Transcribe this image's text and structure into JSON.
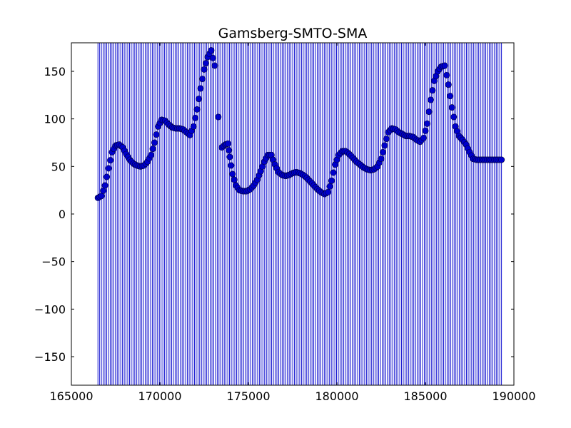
{
  "chart_data": {
    "type": "scatter",
    "title": "Gamsberg-SMTO-SMA",
    "xlabel": "",
    "ylabel": "",
    "xlim": [
      165000,
      190000
    ],
    "ylim": [
      -180,
      180
    ],
    "xticks": [
      165000,
      170000,
      175000,
      180000,
      185000,
      190000
    ],
    "xtick_labels": [
      "165000",
      "170000",
      "175000",
      "180000",
      "185000",
      "190000"
    ],
    "yticks": [
      150,
      100,
      50,
      0,
      -50,
      -100,
      -150
    ],
    "ytick_labels": [
      "150",
      "100",
      "50",
      "0",
      "−50",
      "−100",
      "−150"
    ],
    "grid": false,
    "series": [
      {
        "marker": "circle",
        "color": "#0000cc",
        "x": [
          166500,
          166700,
          166900,
          167100,
          167300,
          167500,
          167700,
          167900,
          168100,
          168300,
          168500,
          168700,
          168900,
          169100,
          169300,
          169500,
          169700,
          169900,
          170100,
          170300,
          170500,
          170700,
          170900,
          171100,
          171300,
          171500,
          171700,
          171900,
          172100,
          172300,
          172500,
          172700,
          172900,
          173100,
          173300,
          173500,
          173700,
          173850,
          173950,
          174100,
          174300,
          174500,
          174700,
          174900,
          175100,
          175300,
          175500,
          175700,
          175900,
          176100,
          176300,
          176500,
          176700,
          176900,
          177100,
          177300,
          177500,
          177700,
          177900,
          178100,
          178300,
          178500,
          178700,
          178900,
          179100,
          179300,
          179500,
          179700,
          179900,
          180100,
          180300,
          180500,
          180700,
          180900,
          181100,
          181300,
          181500,
          181700,
          181900,
          182100,
          182300,
          182500,
          182700,
          182900,
          183100,
          183300,
          183500,
          183700,
          183900,
          184100,
          184300,
          184500,
          184700,
          184900,
          185100,
          185300,
          185500,
          185700,
          185900,
          186100,
          186300,
          186500,
          186700,
          186900,
          187100,
          187300,
          187500,
          187700,
          187900,
          188100,
          188300,
          188500,
          188700,
          188900,
          189100,
          189300
        ],
        "y": [
          17,
          19,
          30,
          48,
          65,
          72,
          73,
          70,
          63,
          57,
          53,
          51,
          50,
          51,
          55,
          62,
          75,
          92,
          99,
          98,
          94,
          91,
          90,
          90,
          89,
          86,
          83,
          92,
          110,
          132,
          152,
          165,
          172,
          156,
          102,
          70,
          73,
          74,
          60,
          42,
          30,
          25,
          24,
          24,
          26,
          30,
          36,
          45,
          55,
          62,
          62,
          52,
          44,
          41,
          40,
          41,
          43,
          44,
          43,
          41,
          38,
          34,
          30,
          26,
          23,
          21,
          23,
          35,
          52,
          62,
          66,
          66,
          63,
          59,
          55,
          52,
          49,
          47,
          46,
          47,
          50,
          58,
          72,
          86,
          90,
          89,
          86,
          84,
          82,
          82,
          81,
          78,
          76,
          80,
          95,
          120,
          140,
          150,
          155,
          156,
          136,
          112,
          92,
          82,
          78,
          73,
          65,
          58,
          57,
          57,
          57,
          57,
          57,
          57,
          57,
          57
        ],
        "vlines_from": -180,
        "vlines_to": 180
      }
    ]
  }
}
